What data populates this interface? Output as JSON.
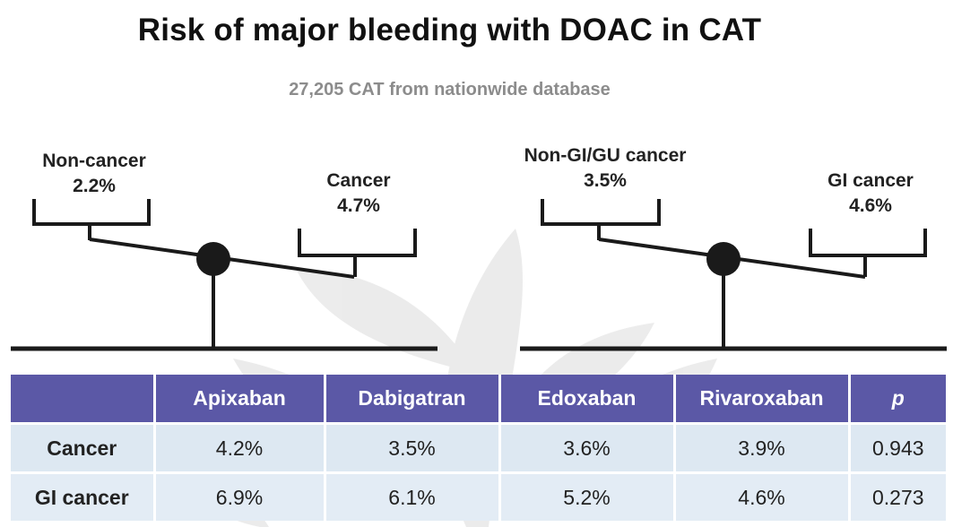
{
  "title": "Risk of major bleeding with DOAC in CAT",
  "subtitle": "27,205 CAT from nationwide database",
  "colors": {
    "header_bg": "#5b58a6",
    "header_text": "#ffffff",
    "row_bg": "#dde8f2",
    "scale": "#1a1a1a",
    "watermark": "#d9d9d9"
  },
  "chart_data": [
    {
      "type": "balance-scale",
      "left": {
        "label": "Non-cancer",
        "value_text": "2.2%",
        "value": 2.2
      },
      "right": {
        "label": "Cancer",
        "value_text": "4.7%",
        "value": 4.7
      },
      "heavier_side": "right"
    },
    {
      "type": "balance-scale",
      "left": {
        "label": "Non-GI/GU cancer",
        "value_text": "3.5%",
        "value": 3.5
      },
      "right": {
        "label": "GI cancer",
        "value_text": "4.6%",
        "value": 4.6
      },
      "heavier_side": "right"
    },
    {
      "type": "table",
      "columns": [
        "",
        "Apixaban",
        "Dabigatran",
        "Edoxaban",
        "Rivaroxaban",
        "p"
      ],
      "rows": [
        [
          "Cancer",
          "4.2%",
          "3.5%",
          "3.6%",
          "3.9%",
          "0.943"
        ],
        [
          "GI cancer",
          "6.9%",
          "6.1%",
          "5.2%",
          "4.6%",
          "0.273"
        ]
      ]
    }
  ]
}
